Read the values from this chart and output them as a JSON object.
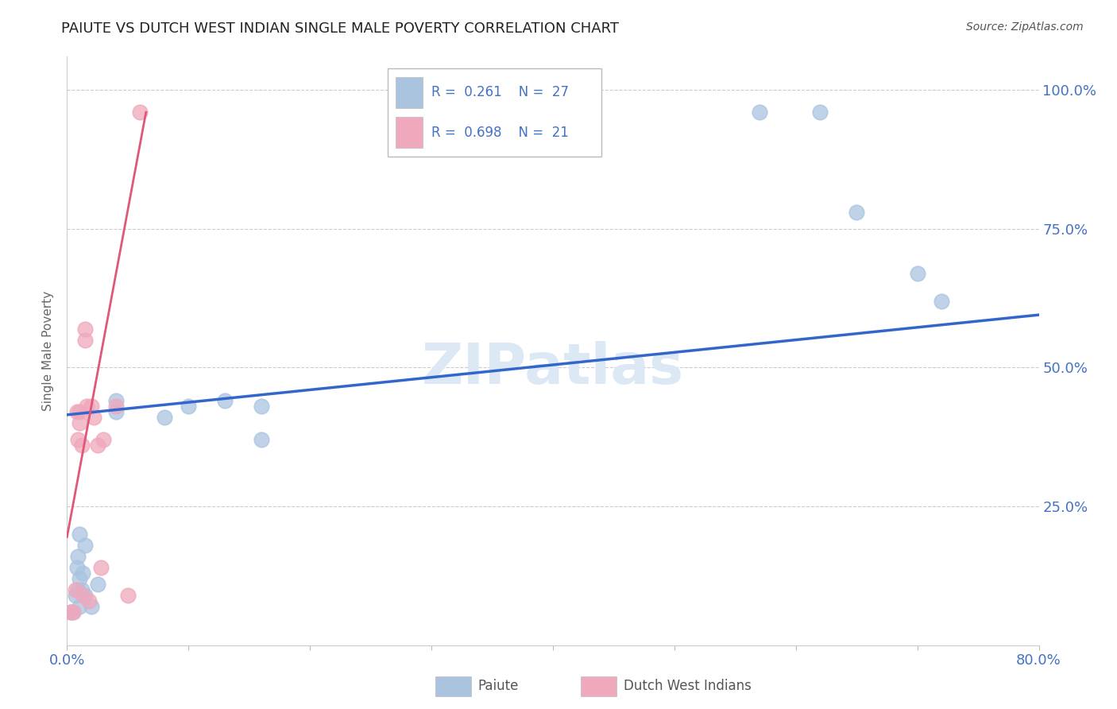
{
  "title": "PAIUTE VS DUTCH WEST INDIAN SINGLE MALE POVERTY CORRELATION CHART",
  "source": "Source: ZipAtlas.com",
  "ylabel": "Single Male Poverty",
  "xlim": [
    0.0,
    0.8
  ],
  "ylim": [
    0.0,
    1.06
  ],
  "xtick_positions": [
    0.0,
    0.1,
    0.2,
    0.3,
    0.4,
    0.5,
    0.6,
    0.7,
    0.8
  ],
  "xtick_labels": [
    "0.0%",
    "",
    "",
    "",
    "",
    "",
    "",
    "",
    "80.0%"
  ],
  "ytick_positions": [
    0.0,
    0.25,
    0.5,
    0.75,
    1.0
  ],
  "ytick_labels": [
    "",
    "25.0%",
    "50.0%",
    "75.0%",
    "100.0%"
  ],
  "grid_color": "#cccccc",
  "bg_color": "#ffffff",
  "watermark": "ZIPatlas",
  "paiute_color": "#aac4e0",
  "dutch_color": "#f0a8bc",
  "paiute_line_color": "#3366cc",
  "dutch_line_color": "#e05878",
  "paiute_R": 0.261,
  "paiute_N": 27,
  "dutch_R": 0.698,
  "dutch_N": 21,
  "paiute_scatter_x": [
    0.003,
    0.005,
    0.007,
    0.008,
    0.009,
    0.009,
    0.01,
    0.01,
    0.01,
    0.012,
    0.013,
    0.015,
    0.015,
    0.02,
    0.025,
    0.04,
    0.04,
    0.08,
    0.1,
    0.13,
    0.16,
    0.16,
    0.57,
    0.62,
    0.65,
    0.7,
    0.72
  ],
  "paiute_scatter_y": [
    0.06,
    0.06,
    0.09,
    0.14,
    0.1,
    0.16,
    0.07,
    0.12,
    0.2,
    0.1,
    0.13,
    0.09,
    0.18,
    0.07,
    0.11,
    0.44,
    0.42,
    0.41,
    0.43,
    0.44,
    0.37,
    0.43,
    0.96,
    0.96,
    0.78,
    0.67,
    0.62
  ],
  "dutch_scatter_x": [
    0.003,
    0.005,
    0.007,
    0.008,
    0.009,
    0.01,
    0.01,
    0.012,
    0.013,
    0.015,
    0.015,
    0.016,
    0.018,
    0.02,
    0.022,
    0.025,
    0.028,
    0.03,
    0.04,
    0.05,
    0.06
  ],
  "dutch_scatter_y": [
    0.06,
    0.06,
    0.1,
    0.42,
    0.37,
    0.42,
    0.4,
    0.36,
    0.09,
    0.57,
    0.55,
    0.43,
    0.08,
    0.43,
    0.41,
    0.36,
    0.14,
    0.37,
    0.43,
    0.09,
    0.96
  ],
  "paiute_trend_x": [
    0.0,
    0.8
  ],
  "paiute_trend_y": [
    0.415,
    0.595
  ],
  "dutch_trend_x": [
    0.0,
    0.065
  ],
  "dutch_trend_y": [
    0.195,
    0.96
  ]
}
